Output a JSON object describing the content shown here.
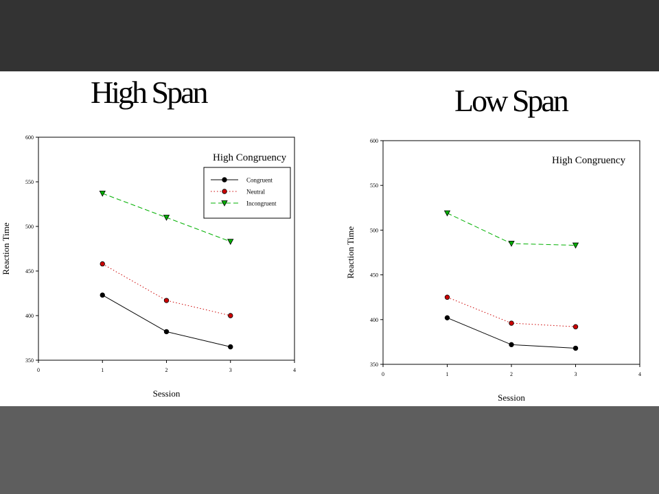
{
  "slide": {
    "colors": {
      "top_band": "#333333",
      "content": "#ffffff",
      "bottom_band": "#5e5e5e"
    }
  },
  "panels": {
    "left_title": "High Span",
    "right_title": "Low Span"
  },
  "chart_data": [
    {
      "type": "line",
      "title": "High Span",
      "annotation": "High Congruency",
      "xlabel": "Session",
      "ylabel": "Reaction Time",
      "xlim": [
        0,
        4
      ],
      "ylim": [
        350,
        600
      ],
      "x_ticks": [
        0,
        1,
        2,
        3,
        4
      ],
      "y_ticks": [
        350,
        400,
        450,
        500,
        550,
        600
      ],
      "grid": false,
      "legend": "top-right",
      "x": [
        1,
        2,
        3
      ],
      "series": [
        {
          "name": "Congruent",
          "values": [
            423,
            382,
            365
          ],
          "color": "#000000",
          "marker": "circle",
          "line_style": "solid"
        },
        {
          "name": "Neutral",
          "values": [
            458,
            417,
            400
          ],
          "color": "#cc0000",
          "marker": "circle",
          "line_style": "dotted"
        },
        {
          "name": "Incongruent",
          "values": [
            537,
            510,
            483
          ],
          "color": "#00b000",
          "marker": "triangle-down",
          "line_style": "dashed"
        }
      ]
    },
    {
      "type": "line",
      "title": "Low Span",
      "annotation": "High Congruency",
      "xlabel": "Session",
      "ylabel": "Reaction Time",
      "xlim": [
        0,
        4
      ],
      "ylim": [
        350,
        600
      ],
      "x_ticks": [
        0,
        1,
        2,
        3,
        4
      ],
      "y_ticks": [
        350,
        400,
        450,
        500,
        550,
        600
      ],
      "grid": false,
      "legend": "none",
      "x": [
        1,
        2,
        3
      ],
      "series": [
        {
          "values": [
            402,
            372,
            368
          ],
          "color": "#000000",
          "marker": "circle",
          "line_style": "solid"
        },
        {
          "values": [
            425,
            396,
            392
          ],
          "color": "#cc0000",
          "marker": "circle",
          "line_style": "dotted"
        },
        {
          "values": [
            519,
            485,
            483
          ],
          "color": "#00b000",
          "marker": "triangle-down",
          "line_style": "dashed"
        }
      ]
    }
  ]
}
